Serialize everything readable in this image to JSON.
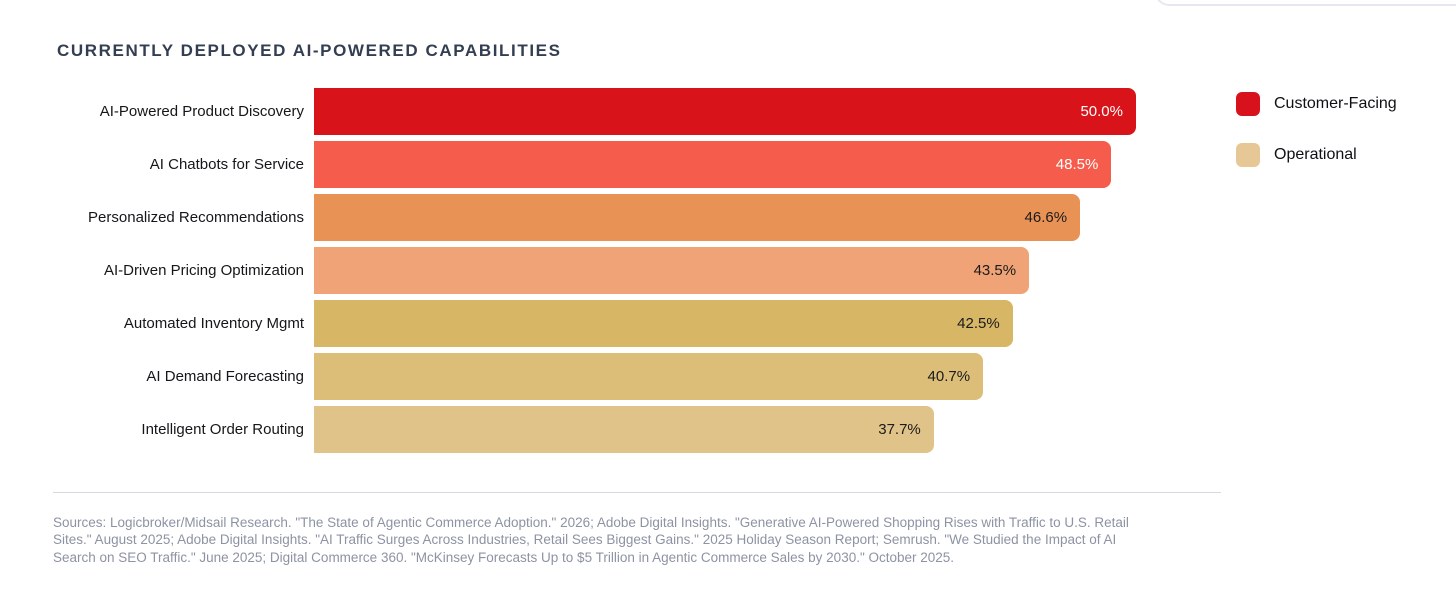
{
  "page": {
    "background": "#ffffff"
  },
  "header": {
    "title": "CURRENTLY DEPLOYED AI-POWERED CAPABILITIES",
    "title_color": "#333e52"
  },
  "chart_data": {
    "type": "bar",
    "orientation": "horizontal",
    "title": "CURRENTLY DEPLOYED AI-POWERED CAPABILITIES",
    "categories": [
      "AI-Powered Product Discovery",
      "AI Chatbots for Service",
      "Personalized Recommendations",
      "AI-Driven Pricing Optimization",
      "Automated Inventory Mgmt",
      "AI Demand Forecasting",
      "Intelligent Order Routing"
    ],
    "values": [
      50.0,
      48.5,
      46.6,
      43.5,
      42.5,
      40.7,
      37.7
    ],
    "value_labels": [
      "50.0%",
      "48.5%",
      "46.6%",
      "43.5%",
      "42.5%",
      "40.7%",
      "37.7%"
    ],
    "bar_colors": [
      "#d9131a",
      "#f55c4b",
      "#e99255",
      "#f0a377",
      "#d7b765",
      "#dcbe79",
      "#e0c388"
    ],
    "value_label_colors": [
      "#ffffff",
      "#ffffff",
      "#1b1b1b",
      "#1b1b1b",
      "#1b1b1b",
      "#1b1b1b",
      "#1b1b1b"
    ],
    "xlabel": "",
    "ylabel": "",
    "xlim": [
      0,
      50
    ],
    "grid": false,
    "axis_visible": false,
    "legend_position": "top-right",
    "legend": [
      {
        "label": "Customer-Facing",
        "color": "#d8121c"
      },
      {
        "label": "Operational",
        "color": "#e6c795"
      }
    ]
  },
  "footer": {
    "sources": "Sources: Logicbroker/Midsail Research. \"The State of Agentic Commerce Adoption.\" 2026; Adobe Digital Insights. \"Generative AI-Powered Shopping Rises with Traffic to U.S. Retail Sites.\" August 2025; Adobe Digital Insights. \"AI Traffic Surges Across Industries, Retail Sees Biggest Gains.\" 2025 Holiday Season Report; Semrush. \"We Studied the Impact of AI Search on SEO Traffic.\" June 2025; Digital Commerce 360. \"McKinsey Forecasts Up to $5 Trillion in Agentic Commerce Sales by 2030.\" October 2025."
  }
}
